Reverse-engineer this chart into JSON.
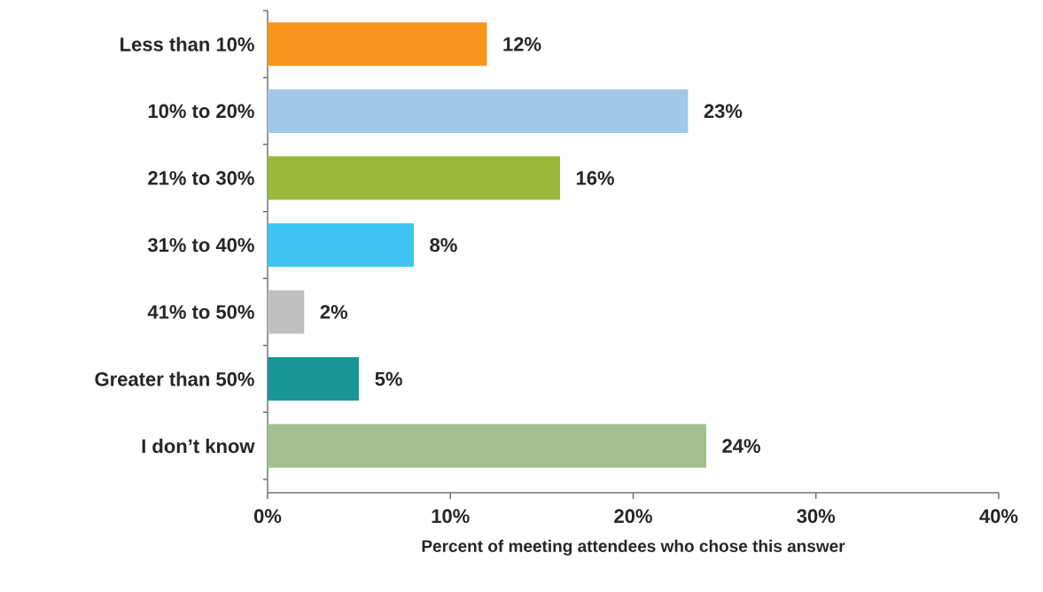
{
  "chart_data": {
    "type": "bar",
    "orientation": "horizontal",
    "categories": [
      "Less than 10%",
      "10% to 20%",
      "21% to 30%",
      "31% to 40%",
      "41% to 50%",
      "Greater than 50%",
      "I don’t know"
    ],
    "values": [
      12,
      23,
      16,
      8,
      2,
      5,
      24
    ],
    "colors": [
      "#f7941d",
      "#a0c8eb",
      "#9bba3c",
      "#3ec6f0",
      "#c0c0c0",
      "#1a9696",
      "#a3bf90"
    ],
    "value_labels": [
      "12%",
      "23%",
      "16%",
      "8%",
      "2%",
      "5%",
      "24%"
    ],
    "xlabel": "Percent of meeting attendees who chose this answer",
    "xlim": [
      0,
      40
    ],
    "xticks": [
      {
        "value": 0,
        "label": "0%"
      },
      {
        "value": 10,
        "label": "10%"
      },
      {
        "value": 20,
        "label": "20%"
      },
      {
        "value": 30,
        "label": "30%"
      },
      {
        "value": 40,
        "label": "40%"
      }
    ]
  }
}
